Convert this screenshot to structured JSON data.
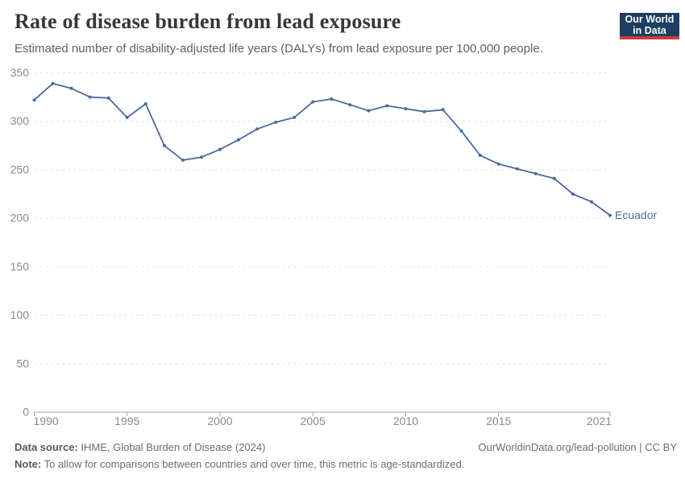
{
  "header": {
    "title": "Rate of disease burden from lead exposure",
    "subtitle": "Estimated number of disability-adjusted life years (DALYs) from lead exposure per 100,000 people.",
    "logo": {
      "line1": "Our World",
      "line2": "in Data",
      "bg_color": "#1d3d63",
      "accent_color": "#cc3c3c"
    }
  },
  "chart_data": {
    "type": "line",
    "title": "Rate of disease burden from lead exposure",
    "xlabel": "",
    "ylabel": "",
    "x": [
      1990,
      1991,
      1992,
      1993,
      1994,
      1995,
      1996,
      1997,
      1998,
      1999,
      2000,
      2001,
      2002,
      2003,
      2004,
      2005,
      2006,
      2007,
      2008,
      2009,
      2010,
      2011,
      2012,
      2013,
      2014,
      2015,
      2016,
      2017,
      2018,
      2019,
      2020,
      2021
    ],
    "series": [
      {
        "name": "Ecuador",
        "color": "#4c6a9c",
        "values": [
          322,
          339,
          334,
          325,
          324,
          304,
          318,
          275,
          260,
          263,
          271,
          281,
          292,
          299,
          304,
          320,
          323,
          317,
          311,
          316,
          313,
          310,
          312,
          290,
          265,
          256,
          251,
          246,
          241,
          225,
          217,
          203
        ]
      }
    ],
    "end_label": "Ecuador",
    "ylim": [
      0,
      350
    ],
    "y_ticks": [
      0,
      50,
      100,
      150,
      200,
      250,
      300,
      350
    ],
    "x_ticks": [
      1990,
      1995,
      2000,
      2005,
      2010,
      2015,
      2021
    ],
    "grid": "horizontal-dashed",
    "legend_position": "end-of-line-label",
    "axis_color": "#a3a3a3",
    "grid_color": "#e2e2e2",
    "tick_label_color": "#8a8a8a"
  },
  "footer": {
    "source_label": "Data source:",
    "source_value": " IHME, Global Burden of Disease (2024)",
    "link": "OurWorldinData.org/lead-pollution | CC BY",
    "note_label": "Note:",
    "note_value": " To allow for comparisons between countries and over time, this metric is age-standardized."
  }
}
